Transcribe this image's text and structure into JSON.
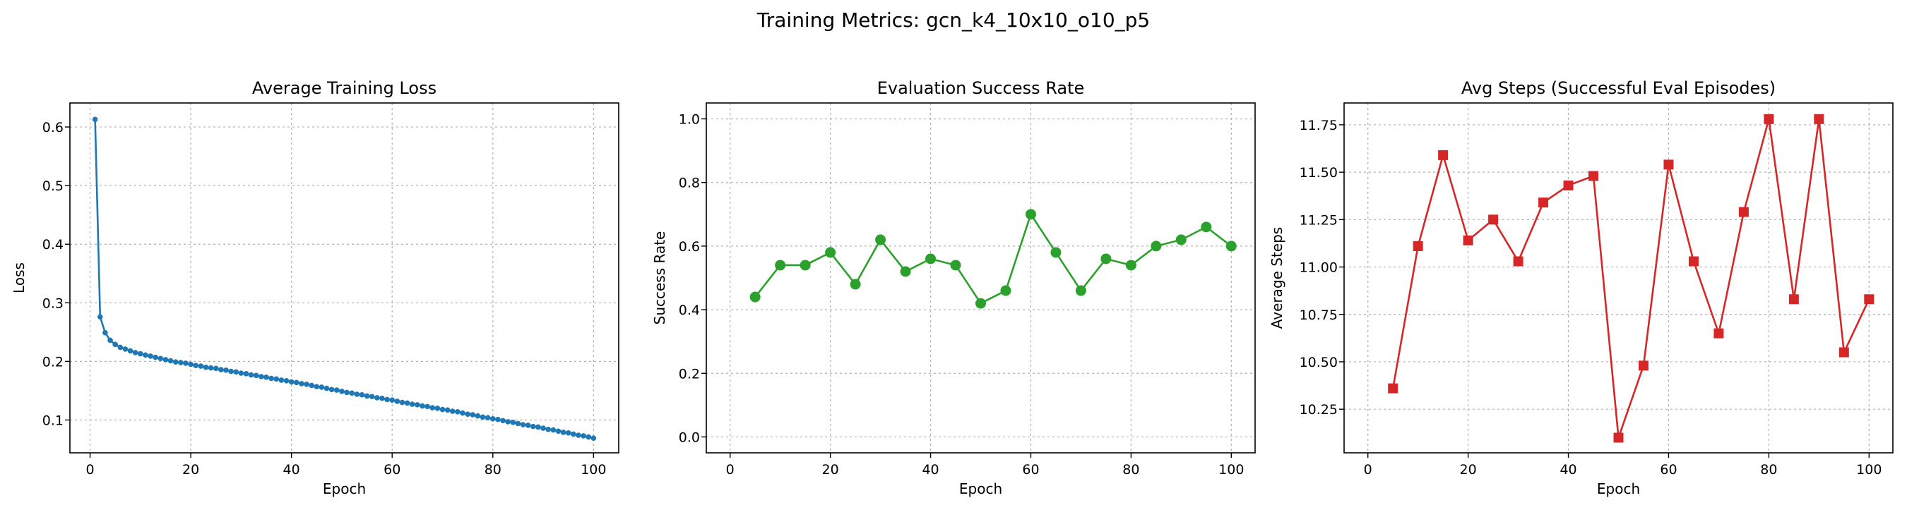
{
  "figure": {
    "suptitle": "Training Metrics: gcn_k4_10x10_o10_p5"
  },
  "chart_data": [
    {
      "type": "line",
      "title": "Average Training Loss",
      "xlabel": "Epoch",
      "ylabel": "Loss",
      "xlim": [
        -4,
        105
      ],
      "ylim": [
        0.044,
        0.641
      ],
      "xticks": [
        0,
        20,
        40,
        60,
        80,
        100
      ],
      "xtick_labels": [
        "0",
        "20",
        "40",
        "60",
        "80",
        "100"
      ],
      "yticks": [
        0.1,
        0.2,
        0.3,
        0.4,
        0.5,
        0.6
      ],
      "ytick_labels": [
        "0.1",
        "0.2",
        "0.3",
        "0.4",
        "0.5",
        "0.6"
      ],
      "grid": true,
      "series": [
        {
          "color": "#1f77b4",
          "marker": "circle-small",
          "x": [
            1,
            2,
            3,
            4,
            5,
            6,
            7,
            8,
            9,
            10,
            11,
            12,
            13,
            14,
            15,
            16,
            17,
            18,
            19,
            20,
            21,
            22,
            23,
            24,
            25,
            26,
            27,
            28,
            29,
            30,
            31,
            32,
            33,
            34,
            35,
            36,
            37,
            38,
            39,
            40,
            41,
            42,
            43,
            44,
            45,
            46,
            47,
            48,
            49,
            50,
            51,
            52,
            53,
            54,
            55,
            56,
            57,
            58,
            59,
            60,
            61,
            62,
            63,
            64,
            65,
            66,
            67,
            68,
            69,
            70,
            71,
            72,
            73,
            74,
            75,
            76,
            77,
            78,
            79,
            80,
            81,
            82,
            83,
            84,
            85,
            86,
            87,
            88,
            89,
            90,
            91,
            92,
            93,
            94,
            95,
            96,
            97,
            98,
            99,
            100
          ],
          "y": [
            0.613,
            0.276,
            0.249,
            0.236,
            0.229,
            0.224,
            0.221,
            0.218,
            0.215,
            0.213,
            0.211,
            0.209,
            0.207,
            0.205,
            0.203,
            0.201,
            0.199,
            0.198,
            0.197,
            0.195,
            0.193,
            0.192,
            0.19,
            0.189,
            0.188,
            0.186,
            0.185,
            0.183,
            0.182,
            0.18,
            0.179,
            0.177,
            0.176,
            0.174,
            0.173,
            0.171,
            0.17,
            0.168,
            0.167,
            0.165,
            0.164,
            0.162,
            0.161,
            0.159,
            0.157,
            0.156,
            0.154,
            0.152,
            0.151,
            0.149,
            0.147,
            0.146,
            0.144,
            0.143,
            0.141,
            0.14,
            0.138,
            0.137,
            0.135,
            0.134,
            0.132,
            0.13,
            0.129,
            0.127,
            0.126,
            0.124,
            0.123,
            0.121,
            0.12,
            0.118,
            0.117,
            0.115,
            0.114,
            0.112,
            0.11,
            0.109,
            0.107,
            0.105,
            0.104,
            0.102,
            0.101,
            0.099,
            0.097,
            0.096,
            0.094,
            0.092,
            0.091,
            0.089,
            0.088,
            0.086,
            0.084,
            0.083,
            0.081,
            0.079,
            0.078,
            0.076,
            0.074,
            0.073,
            0.071,
            0.069
          ]
        }
      ]
    },
    {
      "type": "line",
      "title": "Evaluation Success Rate",
      "xlabel": "Epoch",
      "ylabel": "Success Rate",
      "xlim": [
        -4.75,
        104.75
      ],
      "ylim": [
        -0.05,
        1.05
      ],
      "xticks": [
        0,
        20,
        40,
        60,
        80,
        100
      ],
      "xtick_labels": [
        "0",
        "20",
        "40",
        "60",
        "80",
        "100"
      ],
      "yticks": [
        0.0,
        0.2,
        0.4,
        0.6,
        0.8,
        1.0
      ],
      "ytick_labels": [
        "0.0",
        "0.2",
        "0.4",
        "0.6",
        "0.8",
        "1.0"
      ],
      "grid": true,
      "series": [
        {
          "color": "#2ca02c",
          "marker": "circle",
          "x": [
            5,
            10,
            15,
            20,
            25,
            30,
            35,
            40,
            45,
            50,
            55,
            60,
            65,
            70,
            75,
            80,
            85,
            90,
            95,
            100
          ],
          "y": [
            0.44,
            0.54,
            0.54,
            0.58,
            0.48,
            0.62,
            0.52,
            0.56,
            0.54,
            0.42,
            0.46,
            0.7,
            0.58,
            0.46,
            0.56,
            0.54,
            0.6,
            0.62,
            0.66,
            0.6
          ]
        }
      ]
    },
    {
      "type": "line",
      "title": "Avg Steps (Successful Eval Episodes)",
      "xlabel": "Epoch",
      "ylabel": "Average Steps",
      "xlim": [
        -4.75,
        104.75
      ],
      "ylim": [
        10.02,
        11.865
      ],
      "xticks": [
        0,
        20,
        40,
        60,
        80,
        100
      ],
      "xtick_labels": [
        "0",
        "20",
        "40",
        "60",
        "80",
        "100"
      ],
      "yticks": [
        10.25,
        10.5,
        10.75,
        11.0,
        11.25,
        11.5,
        11.75
      ],
      "ytick_labels": [
        "10.25",
        "10.50",
        "10.75",
        "11.00",
        "11.25",
        "11.50",
        "11.75"
      ],
      "grid": true,
      "series": [
        {
          "color": "#d62728",
          "marker": "square",
          "x": [
            5,
            10,
            15,
            20,
            25,
            30,
            35,
            40,
            45,
            50,
            55,
            60,
            65,
            70,
            75,
            80,
            85,
            90,
            95,
            100
          ],
          "y": [
            10.36,
            11.11,
            11.59,
            11.14,
            11.25,
            11.03,
            11.34,
            11.43,
            11.48,
            10.1,
            10.48,
            11.54,
            11.03,
            10.65,
            11.29,
            11.78,
            10.83,
            11.78,
            10.55,
            10.83
          ]
        }
      ]
    }
  ]
}
